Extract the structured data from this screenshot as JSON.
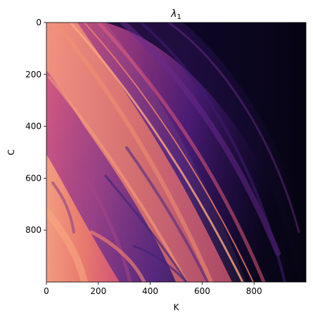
{
  "chart_data": {
    "type": "heatmap",
    "title": "λ1",
    "title_base": "λ",
    "title_subscript": "1",
    "xlabel": "K",
    "ylabel": "C",
    "xlim": [
      0,
      1000
    ],
    "ylim": [
      1000,
      0
    ],
    "x_ticks": [
      0,
      200,
      400,
      600,
      800
    ],
    "y_ticks": [
      0,
      200,
      400,
      600,
      800
    ],
    "colormap": "magma",
    "grid": false,
    "legend": "none",
    "colors": {
      "low": "#0b0924",
      "mid_low": "#3a1670",
      "mid": "#8a2f84",
      "mid_high": "#d1446f",
      "high": "#f7875e",
      "peak": "#fcb488"
    }
  }
}
